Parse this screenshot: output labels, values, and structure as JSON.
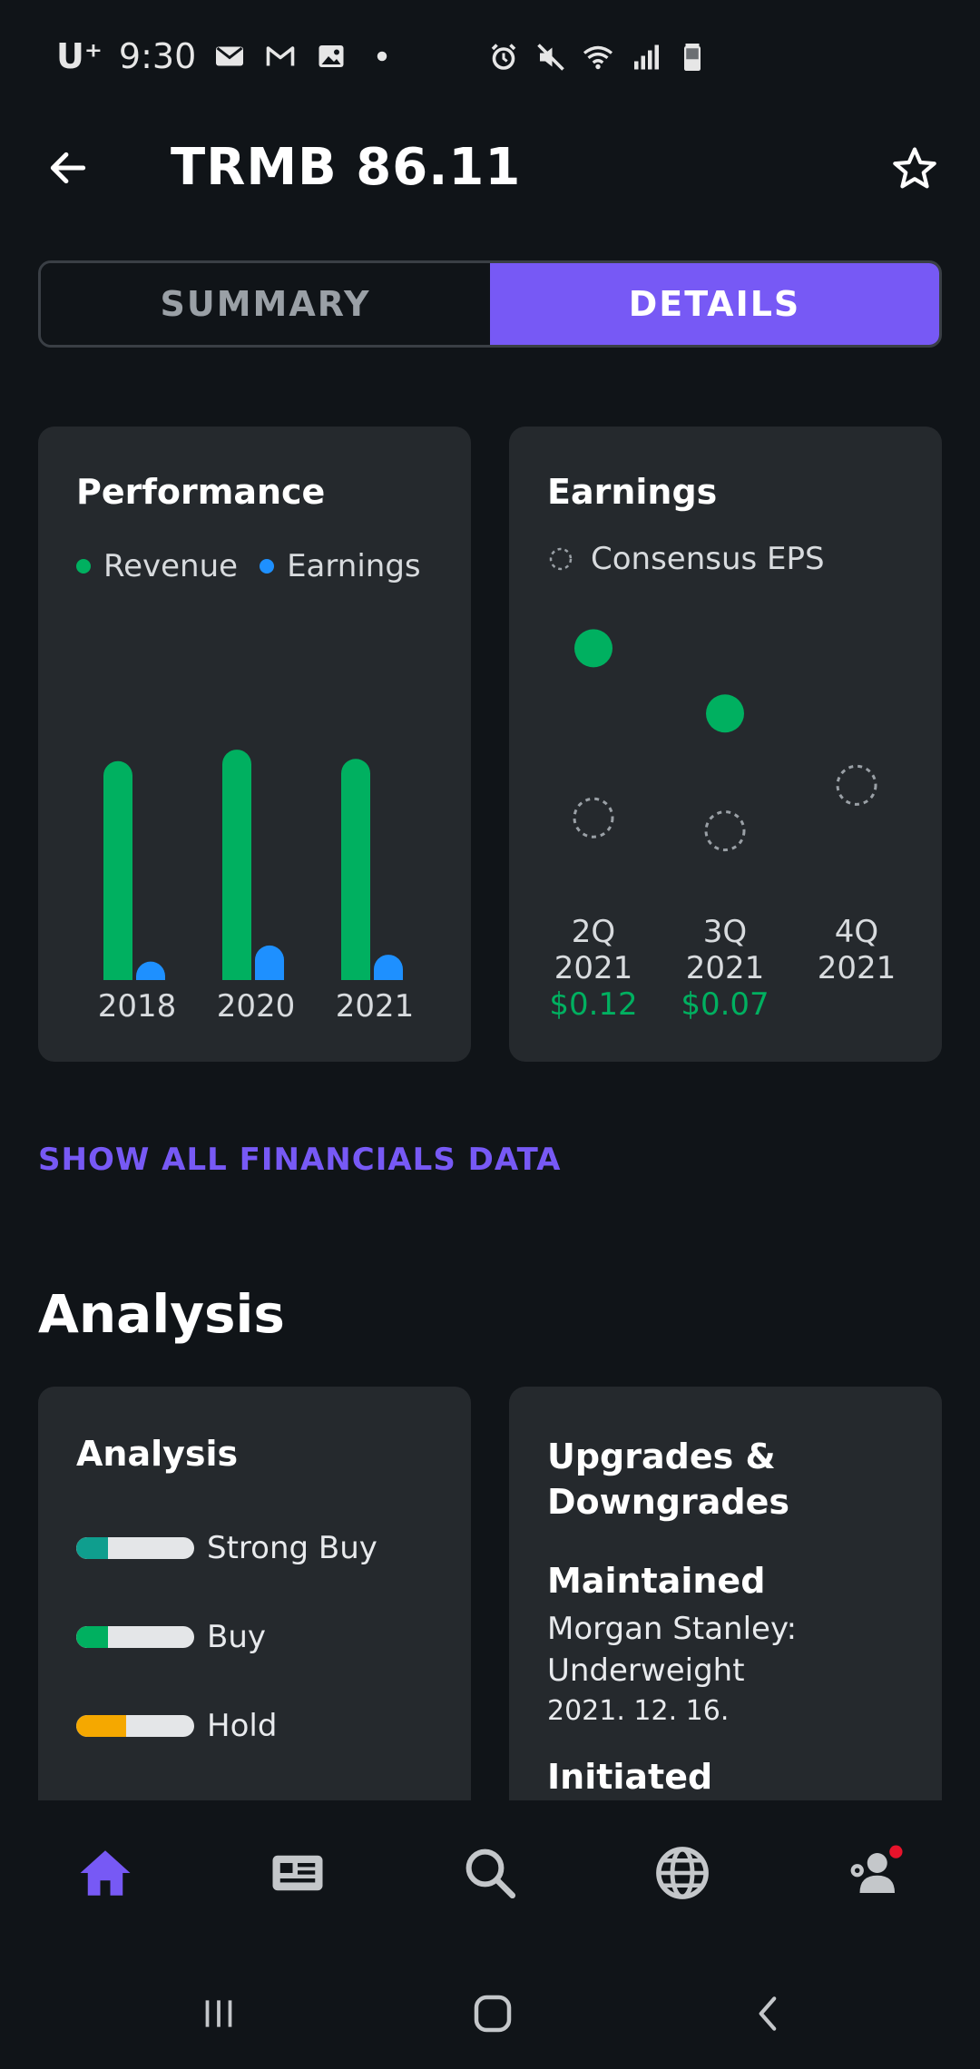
{
  "status_bar": {
    "carrier": "U⁺",
    "time": "9:30",
    "left_icons": [
      "mail-icon",
      "gmail-icon",
      "gallery-icon",
      "dot-icon"
    ],
    "right_icons": [
      "alarm-icon",
      "mute-icon",
      "wifi-icon",
      "signal-icon",
      "battery-icon"
    ]
  },
  "header": {
    "title": "TRMB 86.11"
  },
  "tabs": [
    {
      "label": "SUMMARY",
      "active": false
    },
    {
      "label": "DETAILS",
      "active": true
    }
  ],
  "performance_card": {
    "title": "Performance",
    "legend": [
      {
        "label": "Revenue",
        "color": "#00b060"
      },
      {
        "label": "Earnings",
        "color": "#1e90ff"
      }
    ]
  },
  "earnings_card": {
    "title": "Earnings",
    "legend_label": "Consensus EPS"
  },
  "chart_data": [
    {
      "type": "bar",
      "title": "Performance",
      "categories": [
        "2018",
        "2020",
        "2021"
      ],
      "series": [
        {
          "name": "Revenue",
          "values": [
            0.95,
            1.0,
            0.96
          ],
          "color": "#00b060"
        },
        {
          "name": "Earnings",
          "values": [
            0.08,
            0.15,
            0.11
          ],
          "color": "#1e90ff"
        }
      ],
      "ylim": [
        0,
        1.15
      ],
      "legend": "top-left"
    },
    {
      "type": "scatter",
      "title": "Earnings",
      "categories": [
        "2Q\n2021",
        "3Q\n2021",
        "4Q\n2021"
      ],
      "category_lines": [
        [
          "2Q",
          "2021"
        ],
        [
          "3Q",
          "2021"
        ],
        [
          "4Q",
          "2021"
        ]
      ],
      "actual_labels": [
        "$0.12",
        "$0.07",
        ""
      ],
      "series": [
        {
          "name": "Actual",
          "values": [
            0.12,
            0.07,
            null
          ],
          "color": "#00b060"
        },
        {
          "name": "Consensus EPS",
          "values": [
            -0.01,
            -0.02,
            0.015
          ],
          "color": "#9aa0a6"
        }
      ],
      "ylim": [
        -0.03,
        0.13
      ]
    }
  ],
  "links": {
    "show_financials": "SHOW ALL FINANCIALS DATA"
  },
  "analysis_section": {
    "title": "Analysis",
    "analysis_card": {
      "title": "Analysis",
      "ratings": [
        {
          "label": "Strong Buy",
          "fraction": 0.27,
          "color": "#0f9e8e"
        },
        {
          "label": "Buy",
          "fraction": 0.27,
          "color": "#00b060"
        },
        {
          "label": "Hold",
          "fraction": 0.42,
          "color": "#f5a800"
        }
      ]
    },
    "upgrades_card": {
      "title": "Upgrades & Downgrades",
      "entries": [
        {
          "label": "Maintained",
          "text": "Morgan Stanley: Underweight",
          "date": "2021. 12. 16."
        },
        {
          "label": "Initiated",
          "text": "",
          "date": ""
        }
      ]
    }
  },
  "bottom_nav": {
    "items": [
      {
        "name": "home",
        "active": true
      },
      {
        "name": "news"
      },
      {
        "name": "search"
      },
      {
        "name": "markets"
      },
      {
        "name": "profile",
        "badge": true
      }
    ],
    "accent": "#7759f5"
  }
}
